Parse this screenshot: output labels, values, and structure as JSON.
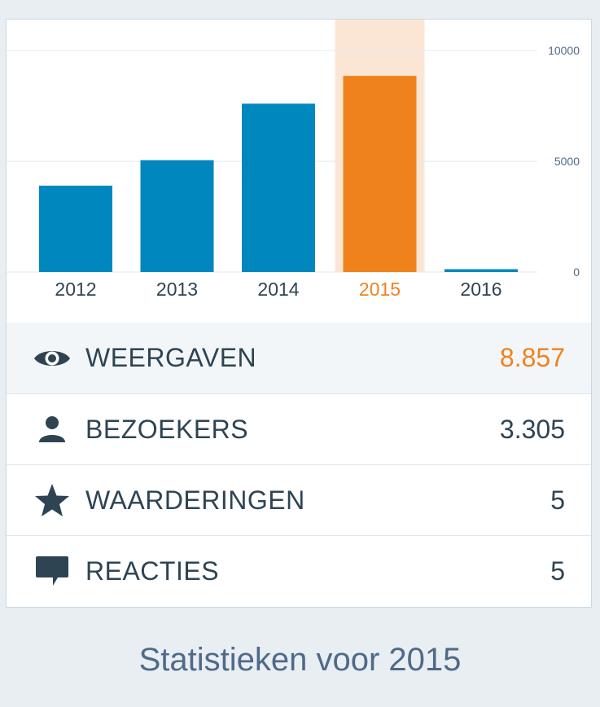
{
  "chart_data": {
    "type": "bar",
    "categories": [
      "2012",
      "2013",
      "2014",
      "2015",
      "2016"
    ],
    "values": [
      3900,
      5050,
      7600,
      8857,
      130
    ],
    "ylim": [
      0,
      10000
    ],
    "yticks": [
      "0",
      "5000",
      "10000"
    ],
    "ytick_values": [
      0,
      5000,
      10000
    ],
    "highlighted_category": "2015",
    "colors": {
      "bar": "#0087be",
      "bar_highlight": "#f0821e",
      "highlight_band": "#fbe6d5",
      "axis_label": "#2e4453",
      "tick_label": "#4f6a89",
      "grid": "#e1e8ee"
    }
  },
  "stats": [
    {
      "icon": "eye-icon",
      "label": "WEERGAVEN",
      "value": "8.857",
      "selected": true
    },
    {
      "icon": "person-icon",
      "label": "BEZOEKERS",
      "value": "3.305",
      "selected": false
    },
    {
      "icon": "star-icon",
      "label": "WAARDERINGEN",
      "value": "5",
      "selected": false
    },
    {
      "icon": "comment-icon",
      "label": "REACTIES",
      "value": "5",
      "selected": false
    }
  ],
  "footer": {
    "title": "Statistieken voor 2015"
  }
}
